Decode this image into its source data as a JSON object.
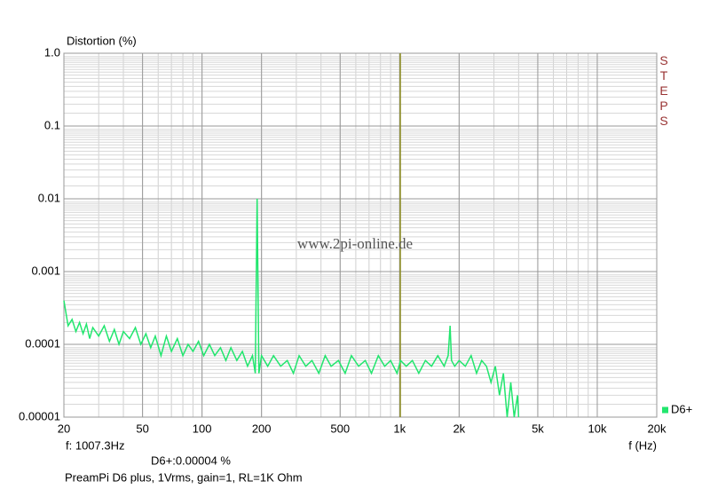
{
  "chart_data": {
    "type": "line",
    "ylabel": "Distortion (%)",
    "xlabel": "f (Hz)",
    "brand": "STEPS",
    "watermark": "www.2pi-online.de",
    "caption": "PreamPi D6 plus, 1Vrms, gain=1, RL=1K Ohm",
    "cursor": {
      "value": 1007.3,
      "label": "f: 1007.3Hz"
    },
    "readout": {
      "value": 4e-05,
      "label": "D6+:0.00004 %"
    },
    "xscale": "log",
    "yscale": "log",
    "grid": true,
    "legend": "lower right",
    "cursor_color": "#8c8c1e",
    "xlim": [
      20,
      20000
    ],
    "ylim": [
      1e-05,
      1
    ],
    "xticks": [
      20,
      50,
      100,
      200,
      500,
      {
        "value": 1000,
        "label": "1k"
      },
      {
        "value": 2000,
        "label": "2k"
      },
      {
        "value": 5000,
        "label": "5k"
      },
      {
        "value": 10000,
        "label": "10k"
      },
      {
        "value": 20000,
        "label": "20k"
      }
    ],
    "yticks": [
      {
        "value": 1,
        "label": "1.0"
      },
      0.1,
      0.01,
      0.001,
      0.0001,
      1e-05
    ],
    "x": [
      20,
      21,
      22,
      23,
      24,
      25,
      26,
      27,
      28,
      30,
      32,
      34,
      36,
      38,
      40,
      43,
      46,
      49,
      52,
      55,
      58,
      62,
      66,
      70,
      75,
      80,
      85,
      90,
      96,
      102,
      109,
      116,
      124,
      132,
      140,
      150,
      160,
      170,
      180,
      186,
      190,
      194,
      200,
      215,
      230,
      250,
      270,
      290,
      310,
      335,
      360,
      390,
      420,
      450,
      490,
      530,
      570,
      620,
      670,
      720,
      780,
      840,
      900,
      970,
      1010,
      1080,
      1160,
      1250,
      1350,
      1450,
      1560,
      1680,
      1760,
      1800,
      1830,
      1900,
      2000,
      2150,
      2300,
      2450,
      2600,
      2750,
      2900,
      3050,
      3200,
      3350,
      3500,
      3650,
      3800,
      3950,
      4000
    ],
    "series": [
      {
        "name": "D6+",
        "color": "#22e66e",
        "values": [
          0.0004,
          0.00018,
          0.00022,
          0.00015,
          0.0002,
          0.00014,
          0.00019,
          0.00012,
          0.00017,
          0.00013,
          0.00018,
          0.00011,
          0.00016,
          0.0001,
          0.00015,
          0.00012,
          0.00017,
          0.0001,
          0.00014,
          9e-05,
          0.00013,
          7e-05,
          0.00013,
          8e-05,
          0.00012,
          7e-05,
          0.0001,
          8e-05,
          0.00011,
          7e-05,
          0.0001,
          7e-05,
          9e-05,
          6e-05,
          9e-05,
          6e-05,
          8e-05,
          5e-05,
          7e-05,
          4e-05,
          0.01,
          4e-05,
          7e-05,
          5e-05,
          7e-05,
          5e-05,
          6e-05,
          4e-05,
          7e-05,
          5e-05,
          6e-05,
          4e-05,
          7e-05,
          5e-05,
          6e-05,
          4e-05,
          7e-05,
          5e-05,
          6e-05,
          4e-05,
          7e-05,
          5e-05,
          6e-05,
          4e-05,
          6e-05,
          5e-05,
          6e-05,
          4e-05,
          6e-05,
          5e-05,
          7e-05,
          5e-05,
          7e-05,
          0.00018,
          6e-05,
          5e-05,
          6e-05,
          5e-05,
          7e-05,
          4e-05,
          6e-05,
          5e-05,
          3e-05,
          5e-05,
          2e-05,
          4e-05,
          1e-05,
          3e-05,
          1e-05,
          2e-05,
          1e-05
        ]
      }
    ]
  }
}
